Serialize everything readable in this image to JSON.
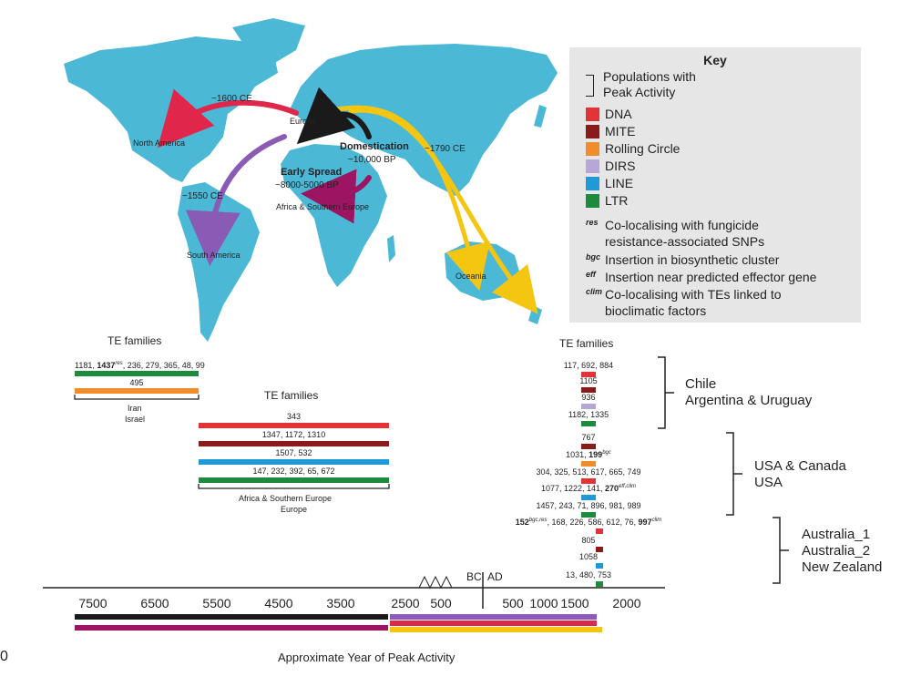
{
  "map_labels": {
    "europe": "Europe",
    "north_america": "North America",
    "south_america": "South America",
    "africa": "Africa & Southern Europe",
    "oceania": "Oceania",
    "domestication": "Domestication",
    "domestication_date": "~10,000 BP",
    "early_spread": "Early Spread",
    "early_spread_date": "~8000-5000 BP",
    "ce1600": "~1600 CE",
    "ce1550": "~1550 CE",
    "ce1790": "~1790 CE"
  },
  "key": {
    "title": "Key",
    "populations": "Populations with Peak Activity",
    "populations_line1": "Populations with",
    "populations_line2": "Peak Activity",
    "items": [
      {
        "label": "DNA",
        "color": "#e23434"
      },
      {
        "label": "MITE",
        "color": "#8b1a1a"
      },
      {
        "label": "Rolling Circle",
        "color": "#f08c2a"
      },
      {
        "label": "DIRS",
        "color": "#b9a6d8"
      },
      {
        "label": "LINE",
        "color": "#1f9ad6"
      },
      {
        "label": "LTR",
        "color": "#1e8a3c"
      }
    ],
    "notes": [
      {
        "sup": "res",
        "line1": "Co-localising with fungicide",
        "line2": "resistance-associated SNPs"
      },
      {
        "sup": "bgc",
        "line1": "Insertion in biosynthetic cluster",
        "line2": ""
      },
      {
        "sup": "eff",
        "line1": "Insertion near predicted effector gene",
        "line2": ""
      },
      {
        "sup": "clim",
        "line1": "Co-localising with TEs linked to",
        "line2": "bioclimatic factors"
      }
    ]
  },
  "left_group": {
    "heading": "TE families",
    "rows": [
      {
        "pre": "1181, ",
        "bold": "1437",
        "sup": "res",
        "post": ", 236, 279, 365, 48, 99",
        "color": "#1e8a3c"
      },
      {
        "pre": "495",
        "bold": "",
        "sup": "",
        "post": "",
        "color": "#f08c2a"
      }
    ],
    "pop1": "Iran",
    "pop2": "Israel"
  },
  "middle_group": {
    "heading": "TE families",
    "rows": [
      {
        "text": "343",
        "color": "#e23434"
      },
      {
        "text": "1347, 1172, 1310",
        "color": "#8b1a1a"
      },
      {
        "text": "1507, 532",
        "color": "#1f9ad6"
      },
      {
        "text": "147, 232, 392, 65, 672",
        "color": "#1e8a3c"
      }
    ],
    "pop1": "Africa & Southern Europe",
    "pop2": "Europe"
  },
  "right_group": {
    "heading": "TE families",
    "rows": [
      {
        "pre": "117, 692, 884",
        "bold": "",
        "sup": "",
        "post": "",
        "color": "#e23434"
      },
      {
        "pre": "1105",
        "bold": "",
        "sup": "",
        "post": "",
        "color": "#8b1a1a"
      },
      {
        "pre": "936",
        "bold": "",
        "sup": "",
        "post": "",
        "color": "#b9a6d8"
      },
      {
        "pre": "1182, 1335",
        "bold": "",
        "sup": "",
        "post": "",
        "color": "#1e8a3c"
      },
      {
        "pre": "767",
        "bold": "",
        "sup": "",
        "post": "",
        "color": "#8b1a1a"
      },
      {
        "pre": "1031, ",
        "bold": "199",
        "sup": "bgc",
        "post": "",
        "color": "#f08c2a"
      },
      {
        "pre": "304, 325, 513, 617, 665, 749",
        "bold": "",
        "sup": "",
        "post": "",
        "color": "#e23434"
      },
      {
        "pre": "1077, 1222, 141, ",
        "bold": "270",
        "sup": "eff,clim",
        "post": "",
        "color": "#1f9ad6"
      },
      {
        "pre": "1457, 243, 71, 896, 981, 989",
        "bold": "",
        "sup": "",
        "post": "",
        "color": "#1e8a3c"
      },
      {
        "pre": "",
        "bold": "152",
        "sup": "bgc,res",
        "post": ", 168, 226, 586, 612, 76, ",
        "bold2": "997",
        "sup2": "clim",
        "color": "#e23434"
      },
      {
        "pre": "805",
        "bold": "",
        "sup": "",
        "post": "",
        "color": "#8b1a1a"
      },
      {
        "pre": "1058",
        "bold": "",
        "sup": "",
        "post": "",
        "color": "#1f9ad6"
      },
      {
        "pre": "13, 480, 753",
        "bold": "",
        "sup": "",
        "post": "",
        "color": "#1e8a3c"
      }
    ]
  },
  "regions": {
    "g1_a": "Chile",
    "g1_b": "Argentina & Uruguay",
    "g2_a": "USA & Canada",
    "g2_b": "USA",
    "g3_a": "Australia_1",
    "g3_b": "Australia_2",
    "g3_c": "New Zealand"
  },
  "axis": {
    "title": "Approximate Year of Peak Activity",
    "bc_ticks": [
      "7500",
      "6500",
      "5500",
      "4500",
      "3500",
      "2500",
      "500"
    ],
    "ad_ticks": [
      "500",
      "1000",
      "1500",
      "2000"
    ],
    "bc": "BC",
    "ad": "AD",
    "corner_char": "0"
  },
  "route_colors": {
    "north_america": "#e0264a",
    "south_america": "#8a5bb5",
    "oceania": "#f4c612",
    "domestication": "#1a1a1a",
    "africa": "#9c1462"
  },
  "timeline_bars": {
    "bc_top": "#1a1a1a",
    "bc_bottom": "#9c1462",
    "ad_1": "#8a5bb5",
    "ad_2": "#e0264a",
    "ad_3": "#f4c612"
  }
}
